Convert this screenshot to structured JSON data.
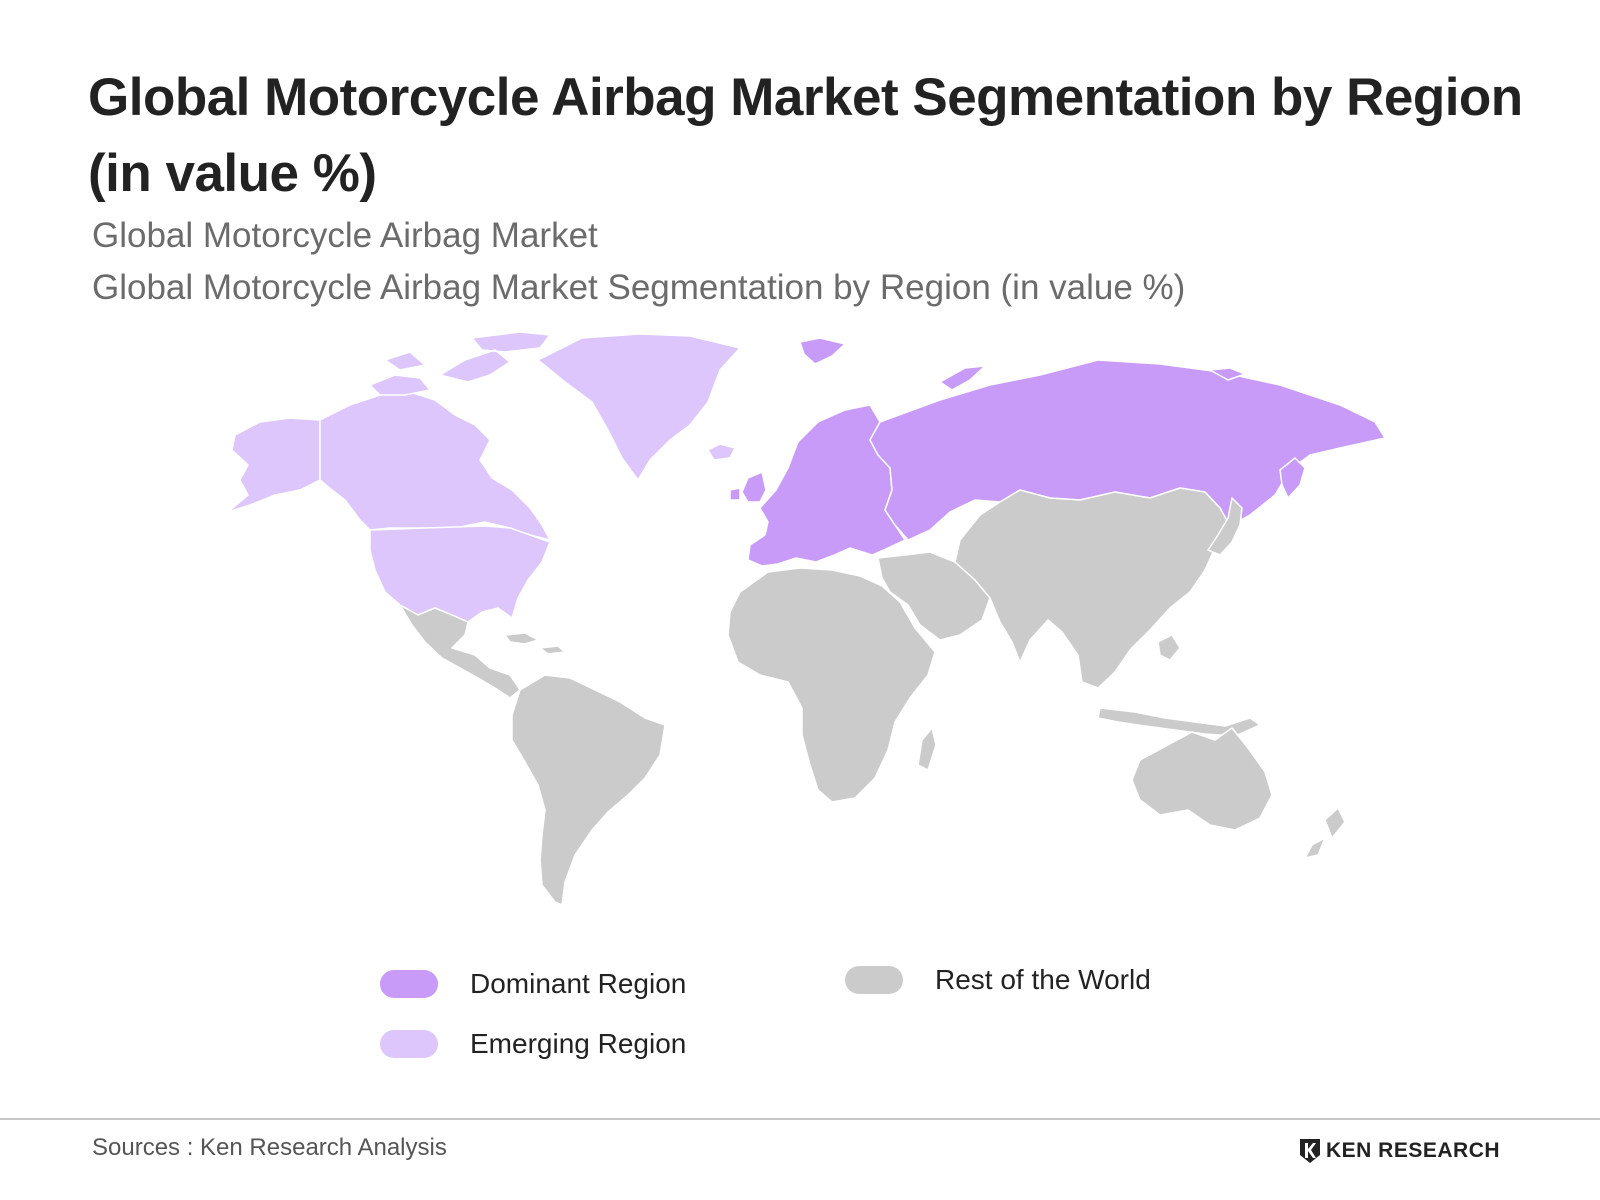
{
  "title": "Global Motorcycle Airbag Market Segmentation by Region (in value %)",
  "subtitle_1": "Global Motorcycle Airbag Market",
  "subtitle_2": "Global Motorcycle Airbag Market Segmentation by Region (in value %)",
  "colors": {
    "dominant": "#c79bf7",
    "emerging": "#dcc6fb",
    "rest": "#cbcbcb",
    "border": "#ffffff"
  },
  "regions": {
    "dominant": [
      "Europe",
      "Russia"
    ],
    "emerging": [
      "North America"
    ],
    "rest": [
      "Latin America",
      "Africa",
      "Middle East",
      "Asia",
      "Oceania"
    ]
  },
  "legend": {
    "dominant_label": "Dominant Region",
    "emerging_label": "Emerging Region",
    "rest_label": "Rest of the World"
  },
  "footer": {
    "source": "Sources : Ken Research Analysis",
    "brand": "KEN RESEARCH"
  }
}
